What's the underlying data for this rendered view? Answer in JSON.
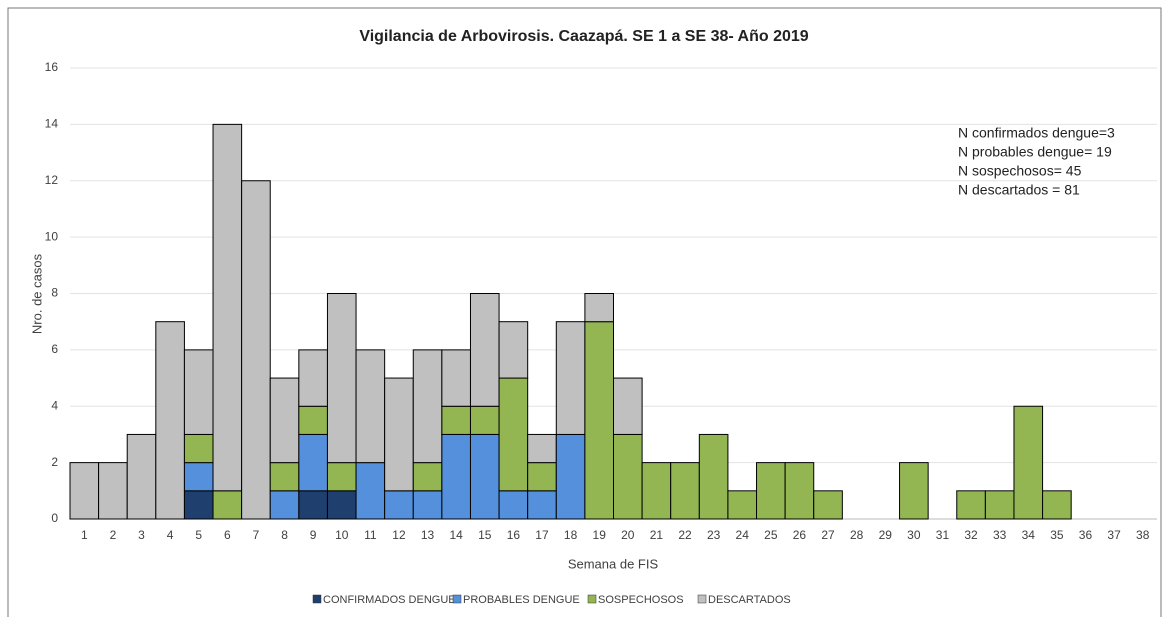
{
  "chart_data": {
    "type": "stacked_bar",
    "title": "Vigilancia de Arbovirosis. Caazapá. SE 1 a SE 38- Año 2019",
    "x_label": "Semana de FIS",
    "y_label": "Nro. de casos",
    "annotation": [
      "N confirmados dengue=3",
      "N probables dengue= 19",
      "N sospechosos= 45",
      "N descartados = 81"
    ],
    "categories": [
      "1",
      "2",
      "3",
      "4",
      "5",
      "6",
      "7",
      "8",
      "9",
      "10",
      "11",
      "12",
      "13",
      "14",
      "15",
      "16",
      "17",
      "18",
      "19",
      "20",
      "21",
      "22",
      "23",
      "24",
      "25",
      "26",
      "27",
      "28",
      "29",
      "30",
      "31",
      "32",
      "33",
      "34",
      "35",
      "36",
      "37",
      "38"
    ],
    "series": [
      {
        "name": "CONFIRMADOS DENGUE",
        "color": "#1f3f6e",
        "values": [
          0,
          0,
          0,
          0,
          1,
          0,
          0,
          0,
          1,
          1,
          0,
          0,
          0,
          0,
          0,
          0,
          0,
          0,
          0,
          0,
          0,
          0,
          0,
          0,
          0,
          0,
          0,
          0,
          0,
          0,
          0,
          0,
          0,
          0,
          0,
          0,
          0,
          0
        ]
      },
      {
        "name": "PROBABLES DENGUE",
        "color": "#5590dc",
        "values": [
          0,
          0,
          0,
          0,
          1,
          0,
          0,
          1,
          2,
          0,
          2,
          1,
          1,
          3,
          3,
          1,
          1,
          3,
          0,
          0,
          0,
          0,
          0,
          0,
          0,
          0,
          0,
          0,
          0,
          0,
          0,
          0,
          0,
          0,
          0,
          0,
          0,
          0
        ]
      },
      {
        "name": "SOSPECHOSOS",
        "color": "#93b653",
        "values": [
          0,
          0,
          0,
          0,
          1,
          1,
          0,
          1,
          1,
          1,
          0,
          0,
          1,
          1,
          1,
          4,
          1,
          0,
          7,
          3,
          2,
          2,
          3,
          1,
          2,
          2,
          1,
          0,
          0,
          2,
          0,
          1,
          1,
          4,
          1,
          0,
          0,
          0
        ]
      },
      {
        "name": "DESCARTADOS",
        "color": "#c0c0c0",
        "values": [
          2,
          2,
          3,
          7,
          3,
          13,
          12,
          3,
          2,
          6,
          4,
          4,
          4,
          2,
          4,
          2,
          1,
          4,
          1,
          2,
          0,
          0,
          0,
          0,
          0,
          0,
          0,
          0,
          0,
          0,
          0,
          0,
          0,
          0,
          0,
          0,
          0,
          0
        ]
      }
    ],
    "ylim": [
      0,
      16
    ],
    "yticks": [
      0,
      2,
      4,
      6,
      8,
      10,
      12,
      14,
      16
    ],
    "grid": true,
    "legend": "bottom"
  }
}
